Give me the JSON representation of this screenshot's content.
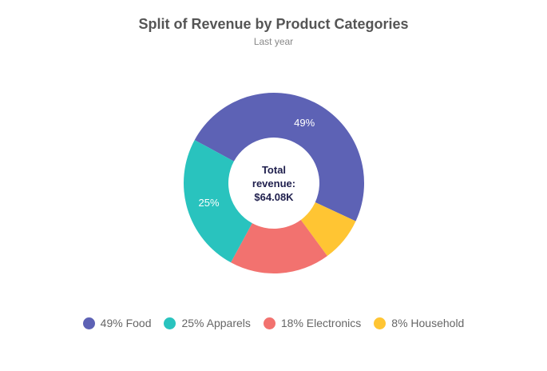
{
  "chart": {
    "title": "Split of Revenue by Product Categories",
    "subtitle": "Last year",
    "center_label": [
      "Total",
      "revenue:",
      "$64.08K"
    ]
  },
  "chart_data": {
    "type": "pie",
    "donut": true,
    "title": "Split of Revenue by Product Categories",
    "subtitle": "Last year",
    "total_revenue": "$64.08K",
    "legend_position": "bottom",
    "slices": [
      {
        "label": "Food",
        "percent": 49,
        "color": "#5d62b5",
        "value_label": "49%",
        "show_value_label": true
      },
      {
        "label": "Household",
        "percent": 8,
        "color": "#ffc533",
        "value_label": "8%",
        "show_value_label": false
      },
      {
        "label": "Electronics",
        "percent": 18,
        "color": "#f2726f",
        "value_label": "18%",
        "show_value_label": false
      },
      {
        "label": "Apparels",
        "percent": 25,
        "color": "#29c3be",
        "value_label": "25%",
        "show_value_label": true
      }
    ]
  },
  "legend": [
    {
      "text": "49% Food",
      "color": "#5d62b5"
    },
    {
      "text": "25% Apparels",
      "color": "#29c3be"
    },
    {
      "text": "18% Electronics",
      "color": "#f2726f"
    },
    {
      "text": "8% Household",
      "color": "#ffc533"
    }
  ]
}
